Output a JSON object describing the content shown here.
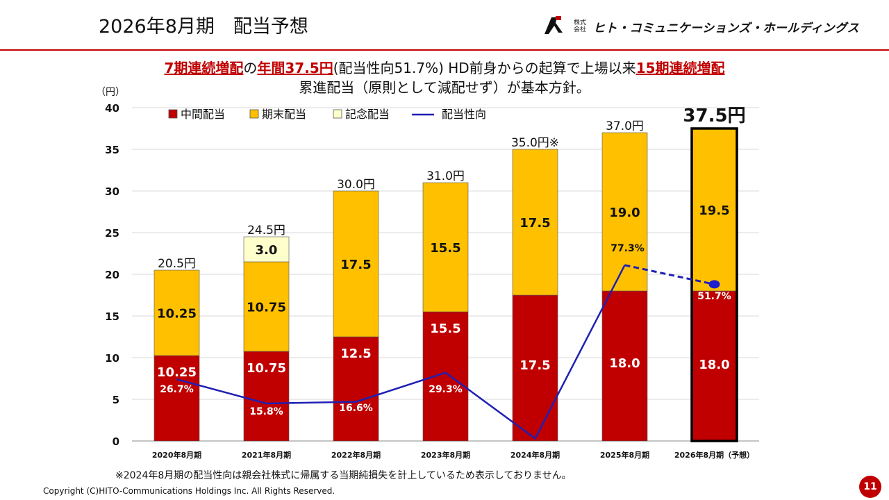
{
  "header": {
    "title": "2026年8月期　配当予想",
    "company_prefix": "株式会社",
    "company_name": "ヒト・コミュニケーションズ・ホールディングス"
  },
  "headline": {
    "part1": "7期連続増配",
    "part2": "の",
    "part3": "年間37.5円",
    "part4": "(配当性向51.7%) HD前身からの起算で上場以来",
    "part5": "15期連続増配",
    "line2": "累進配当（原則として減配せず）が基本方針。"
  },
  "chart_data": {
    "type": "bar",
    "stacked": true,
    "unit_label": "（円）",
    "ylim": [
      0,
      40
    ],
    "yticks": [
      0,
      5,
      10,
      15,
      20,
      25,
      30,
      35,
      40
    ],
    "categories": [
      "2020年8月期",
      "2021年8月期",
      "2022年8月期",
      "2023年8月期",
      "2024年8月期",
      "2025年8月期",
      "2026年8月期（予想）"
    ],
    "series": [
      {
        "name": "中間配当",
        "color": "#c00000",
        "values": [
          10.25,
          10.75,
          12.5,
          15.5,
          17.5,
          18.0,
          18.0
        ],
        "labels": [
          "10.25",
          "10.75",
          "12.5",
          "15.5",
          "17.5",
          "18.0",
          "18.0"
        ]
      },
      {
        "name": "期末配当",
        "color": "#ffc000",
        "values": [
          10.25,
          10.75,
          17.5,
          15.5,
          17.5,
          19.0,
          19.5
        ],
        "labels": [
          "10.25",
          "10.75",
          "17.5",
          "15.5",
          "17.5",
          "19.0",
          "19.5"
        ]
      },
      {
        "name": "記念配当",
        "color": "#ffffcc",
        "values": [
          0,
          3.0,
          0,
          0,
          0,
          0,
          0
        ],
        "labels": [
          "",
          "3.0",
          "",
          "",
          "",
          "",
          ""
        ]
      }
    ],
    "totals": [
      "20.5円",
      "24.5円",
      "30.0円",
      "31.0円",
      "35.0円※",
      "37.0円",
      "37.5円"
    ],
    "payout_ratio": {
      "name": "配当性向",
      "color": "#1f1fb4",
      "values": [
        26.7,
        15.8,
        16.6,
        29.3,
        null,
        77.3,
        51.7
      ],
      "labels": [
        "26.7%",
        "15.8%",
        "16.6%",
        "29.3%",
        "",
        "77.3%",
        "51.7%"
      ],
      "plot_y": [
        7.4,
        4.5,
        4.7,
        8.2,
        0.3,
        21.1,
        18.8
      ]
    },
    "forecast_index": 6
  },
  "footnote": "※2024年8月期の配当性向は親会社株式に帰属する当期純損失を計上しているため表示しておりません。",
  "copyright": "Copyright (C)HITO-Communications Holdings Inc. All Rights Reserved.",
  "page_number": "11"
}
